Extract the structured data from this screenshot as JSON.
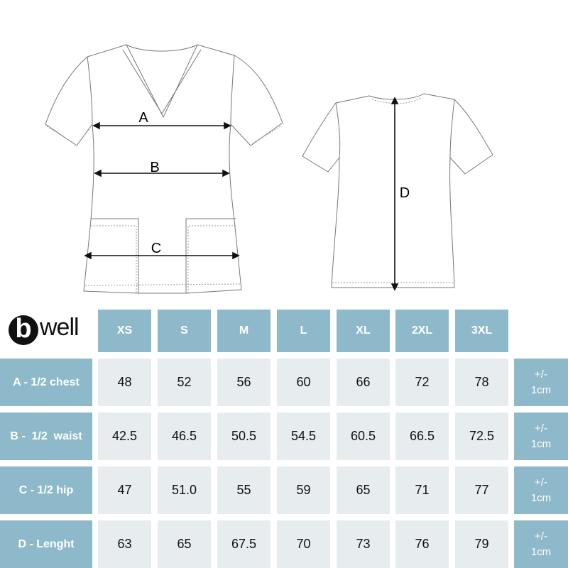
{
  "diagram": {
    "front_labels": [
      "A",
      "B",
      "C"
    ],
    "back_label": "D"
  },
  "logo": {
    "text": "bwell",
    "letter": "b",
    "rest": "well"
  },
  "table": {
    "sizes": [
      "XS",
      "S",
      "M",
      "L",
      "XL",
      "2XL",
      "3XL"
    ],
    "rows": [
      {
        "label": "A - 1/2 chest",
        "values": [
          "48",
          "52",
          "56",
          "60",
          "66",
          "72",
          "78"
        ],
        "tolerance": [
          "+/-",
          "1cm"
        ]
      },
      {
        "label": "B -  1/2  waist",
        "values": [
          "42.5",
          "46.5",
          "50.5",
          "54.5",
          "60.5",
          "66.5",
          "72.5"
        ],
        "tolerance": [
          "+/-",
          "1cm"
        ]
      },
      {
        "label": "C - 1/2 hip",
        "values": [
          "47",
          "51.0",
          "55",
          "59",
          "65",
          "71",
          "77"
        ],
        "tolerance": [
          "+/-",
          "1cm"
        ]
      },
      {
        "label": "D - Lenght",
        "values": [
          "63",
          "65",
          "67.5",
          "70",
          "73",
          "76",
          "79"
        ],
        "tolerance": [
          "+/-",
          "1cm"
        ]
      }
    ]
  },
  "colors": {
    "header": "#8db9ca",
    "cell": "#e7ecef"
  }
}
